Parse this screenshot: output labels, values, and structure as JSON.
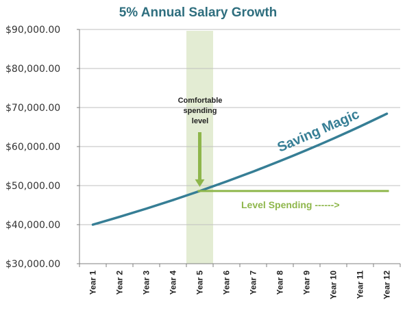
{
  "chart_data": {
    "type": "line",
    "title": "5% Annual Salary Growth",
    "categories": [
      "Year 1",
      "Year 2",
      "Year 3",
      "Year 4",
      "Year 5",
      "Year 6",
      "Year 7",
      "Year 8",
      "Year 9",
      "Year 10",
      "Year 11",
      "Year 12"
    ],
    "series": [
      {
        "name": "",
        "values": [
          40000,
          42000,
          44100,
          46305,
          48620,
          51051,
          53604,
          56284,
          59098,
          62053,
          65156,
          68414
        ],
        "color": "#367E95"
      },
      {
        "name": "",
        "values": [
          null,
          null,
          null,
          null,
          48620,
          48620,
          48620,
          48620,
          48620,
          48620,
          48620,
          48620
        ],
        "color": "#8EB64B"
      }
    ],
    "highlight_category": "Year 5",
    "highlight_color": "#E3ECD3",
    "ylim": [
      30000,
      90000
    ],
    "ytick_values": [
      30000,
      40000,
      50000,
      60000,
      70000,
      80000,
      90000
    ],
    "ytick_labels": [
      "$30,000.00",
      "$40,000.00",
      "$50,000.00",
      "$60,000.00",
      "$70,000.00",
      "$80,000.00",
      "$90,000.00"
    ],
    "grid": true,
    "legend": "none",
    "annotations": {
      "comfortable_line1": "Comfortable",
      "comfortable_line2": "spending",
      "comfortable_line3": "level",
      "level_spending": "Level Spending ------>",
      "saving_magic": "Saving Magic"
    },
    "colors": {
      "title": "#2E6E7E",
      "curve": "#367E95",
      "level": "#8EB64B",
      "grid": "#BFBFBF",
      "axis": "#7F7F7F"
    }
  }
}
